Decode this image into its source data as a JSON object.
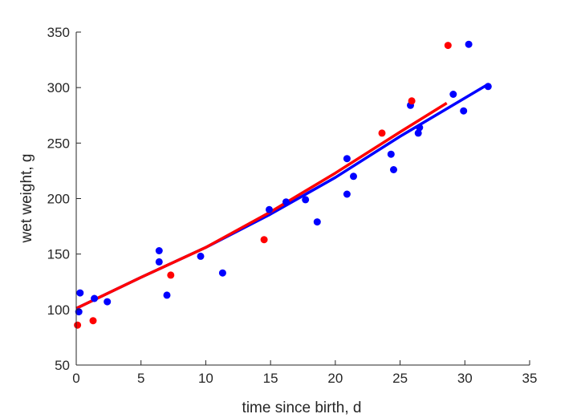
{
  "chart_data": {
    "type": "scatter",
    "xlabel": "time since birth, d",
    "ylabel": "wet weight, g",
    "xlim": [
      0,
      35
    ],
    "ylim": [
      50,
      350
    ],
    "xticks": [
      0,
      5,
      10,
      15,
      20,
      25,
      30,
      35
    ],
    "yticks": [
      50,
      100,
      150,
      200,
      250,
      300,
      350
    ],
    "grid": false,
    "series": [
      {
        "color": "#0000ff",
        "points": [
          [
            0.2,
            98
          ],
          [
            0.3,
            115
          ],
          [
            1.4,
            110
          ],
          [
            2.4,
            107
          ],
          [
            6.4,
            153
          ],
          [
            6.4,
            143
          ],
          [
            7.0,
            113
          ],
          [
            9.6,
            148
          ],
          [
            11.3,
            133
          ],
          [
            14.9,
            190
          ],
          [
            16.2,
            197
          ],
          [
            17.7,
            199
          ],
          [
            18.6,
            179
          ],
          [
            20.9,
            236
          ],
          [
            20.9,
            204
          ],
          [
            21.4,
            220
          ],
          [
            24.3,
            240
          ],
          [
            24.5,
            226
          ],
          [
            25.8,
            284
          ],
          [
            26.4,
            259
          ],
          [
            26.5,
            264
          ],
          [
            29.1,
            294
          ],
          [
            29.9,
            279
          ],
          [
            30.3,
            339
          ],
          [
            31.8,
            301
          ]
        ],
        "fit": [
          [
            0,
            101
          ],
          [
            5,
            129
          ],
          [
            10,
            156
          ],
          [
            15,
            186
          ],
          [
            20,
            219
          ],
          [
            25,
            256
          ],
          [
            31.8,
            303
          ]
        ]
      },
      {
        "color": "#ff0000",
        "points": [
          [
            0.1,
            86
          ],
          [
            1.3,
            90
          ],
          [
            7.3,
            131
          ],
          [
            14.5,
            163
          ],
          [
            23.6,
            259
          ],
          [
            25.9,
            288
          ],
          [
            28.7,
            338
          ]
        ],
        "fit": [
          [
            0,
            101
          ],
          [
            5,
            129
          ],
          [
            10,
            156
          ],
          [
            15,
            188
          ],
          [
            20,
            223
          ],
          [
            25,
            260
          ],
          [
            28.6,
            286
          ]
        ]
      }
    ]
  }
}
